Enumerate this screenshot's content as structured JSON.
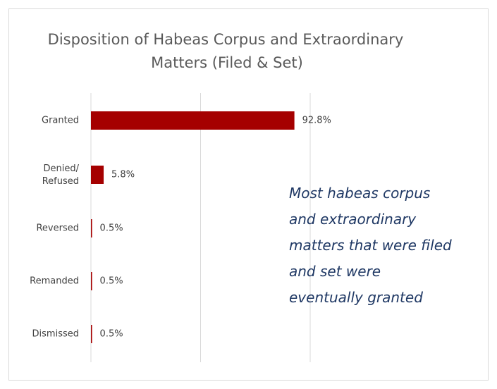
{
  "chart_data": {
    "type": "bar",
    "orientation": "horizontal",
    "title": "Disposition of Habeas Corpus and Extraordinary Matters (Filed & Set)",
    "categories": [
      "Granted",
      "Denied/\nRefused",
      "Reversed",
      "Remanded",
      "Dismissed"
    ],
    "values": [
      92.8,
      5.8,
      0.5,
      0.5,
      0.5
    ],
    "value_labels": [
      "92.8%",
      "5.8%",
      "0.5%",
      "0.5%",
      "0.5%"
    ],
    "color": "#a50000",
    "xlim": [
      0,
      100
    ],
    "xticks": [
      0,
      50,
      100
    ],
    "grid": true,
    "annotation": "Most habeas corpus and extraordinary matters that were filed and set were eventually granted"
  }
}
